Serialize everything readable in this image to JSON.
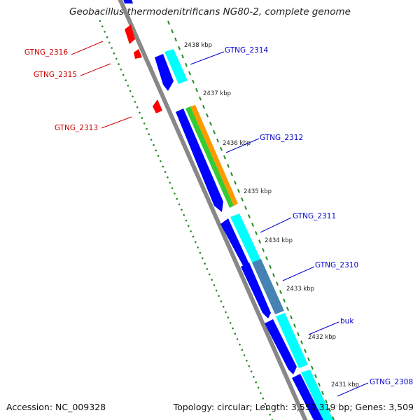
{
  "map": {
    "title": "Geobacillus thermodenitrificans NG80-2, complete genome",
    "accession_text": "Accession: NC_009328",
    "summary_text": "Topology: circular; Length: 3,550,319 bp; Genes: 3,509",
    "colors": {
      "backbone": "#888888",
      "forward_cds": "#0000ff",
      "blast_hit": "#00ffff",
      "reverse_feature": "#ff0000",
      "green_hit": "#33cc33",
      "orange_hit": "#ff9900",
      "slate_hit": "#4682b4",
      "dot_track": "#228b22",
      "tick_track": "#228b22",
      "forward_label": "#0000cc",
      "reverse_label": "#cc0000"
    },
    "ticks": [
      "2438 kbp",
      "2437 kbp",
      "2436 kbp",
      "2435 kbp",
      "2434 kbp",
      "2433 kbp",
      "2432 kbp",
      "2431 kbp"
    ],
    "forward_labels": [
      "GTNG_2314",
      "GTNG_2312",
      "GTNG_2311",
      "GTNG_2310",
      "buk",
      "GTNG_2308"
    ],
    "reverse_labels": [
      "GTNG_2316",
      "GTNG_2315",
      "GTNG_2313"
    ]
  }
}
